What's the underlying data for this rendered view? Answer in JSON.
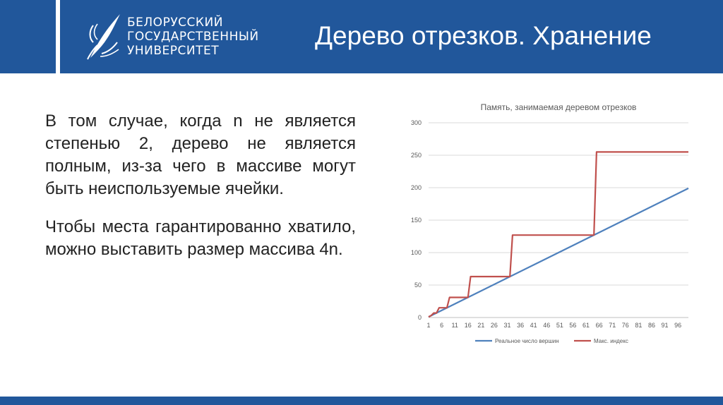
{
  "header": {
    "university_lines": [
      "БЕЛОРУССКИЙ",
      "ГОСУДАРСТВЕННЫЙ",
      "УНИВЕРСИТЕТ"
    ],
    "title": "Дерево отрезков. Хранение",
    "colors": {
      "brand_blue": "#21579b"
    }
  },
  "content": {
    "paragraph1": "В том случае, когда n не является степенью 2, дерево не является полным, из-за чего в массиве могут быть неиспользуемые ячейки.",
    "paragraph2": "Чтобы места гарантированно хватило, можно выставить размер массива 4n."
  },
  "chart_data": {
    "type": "line",
    "title": "Память, занимаемая деревом отрезков",
    "ylim": [
      0,
      300
    ],
    "yticks": [
      0,
      50,
      100,
      150,
      200,
      250,
      300
    ],
    "xlim": [
      1,
      100
    ],
    "xticks": [
      1,
      6,
      11,
      16,
      21,
      26,
      31,
      36,
      41,
      46,
      51,
      56,
      61,
      66,
      71,
      76,
      81,
      86,
      91,
      96
    ],
    "grid": true,
    "legend_position": "bottom",
    "series": [
      {
        "name": "Реальное число вершин",
        "color": "#4f81bd",
        "points": [
          [
            1,
            1
          ],
          [
            100,
            199
          ]
        ]
      },
      {
        "name": "Макс. индекс",
        "color": "#c0504d",
        "points": [
          [
            1,
            1
          ],
          [
            2,
            3
          ],
          [
            3,
            7
          ],
          [
            4,
            7
          ],
          [
            5,
            15
          ],
          [
            8,
            15
          ],
          [
            9,
            31
          ],
          [
            16,
            31
          ],
          [
            17,
            63
          ],
          [
            32,
            63
          ],
          [
            33,
            127
          ],
          [
            64,
            127
          ],
          [
            65,
            255
          ],
          [
            100,
            255
          ]
        ]
      }
    ]
  }
}
